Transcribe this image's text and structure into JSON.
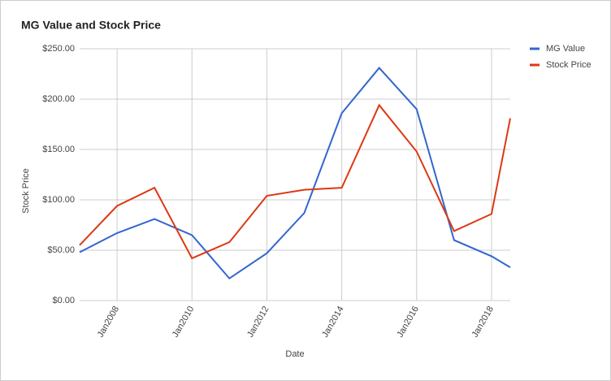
{
  "chart_data": {
    "type": "line",
    "title": "MG Value and Stock Price",
    "x_label": "Date",
    "y_label": "Stock Price",
    "x": [
      "2007-01",
      "2008-01",
      "2009-01",
      "2010-01",
      "2011-01",
      "2012-01",
      "2013-01",
      "2014-01",
      "2015-01",
      "2016-01",
      "2017-01",
      "2018-01",
      "2018-07"
    ],
    "series": [
      {
        "name": "MG Value",
        "color": "#3366cc",
        "values": [
          48,
          67,
          81,
          65,
          22,
          47,
          87,
          186,
          231,
          190,
          60,
          44,
          33
        ]
      },
      {
        "name": "Stock Price",
        "color": "#dc3912",
        "values": [
          55,
          94,
          112,
          42,
          58,
          104,
          110,
          112,
          194,
          148,
          69,
          86,
          181
        ]
      }
    ],
    "xlim": [
      "2007-01",
      "2018-07"
    ],
    "xticks": [
      {
        "value": "2008-01",
        "label": "Jan2008"
      },
      {
        "value": "2010-01",
        "label": "Jan2010"
      },
      {
        "value": "2012-01",
        "label": "Jan2012"
      },
      {
        "value": "2014-01",
        "label": "Jan2014"
      },
      {
        "value": "2016-01",
        "label": "Jan2016"
      },
      {
        "value": "2018-01",
        "label": "Jan2018"
      }
    ],
    "ylim": [
      0,
      250
    ],
    "yticks": [
      {
        "value": 0,
        "label": "$0.00"
      },
      {
        "value": 50,
        "label": "$50.00"
      },
      {
        "value": 100,
        "label": "$100.00"
      },
      {
        "value": 150,
        "label": "$150.00"
      },
      {
        "value": 200,
        "label": "$200.00"
      },
      {
        "value": 250,
        "label": "$250.00"
      }
    ],
    "grid": true,
    "legend": "right"
  }
}
